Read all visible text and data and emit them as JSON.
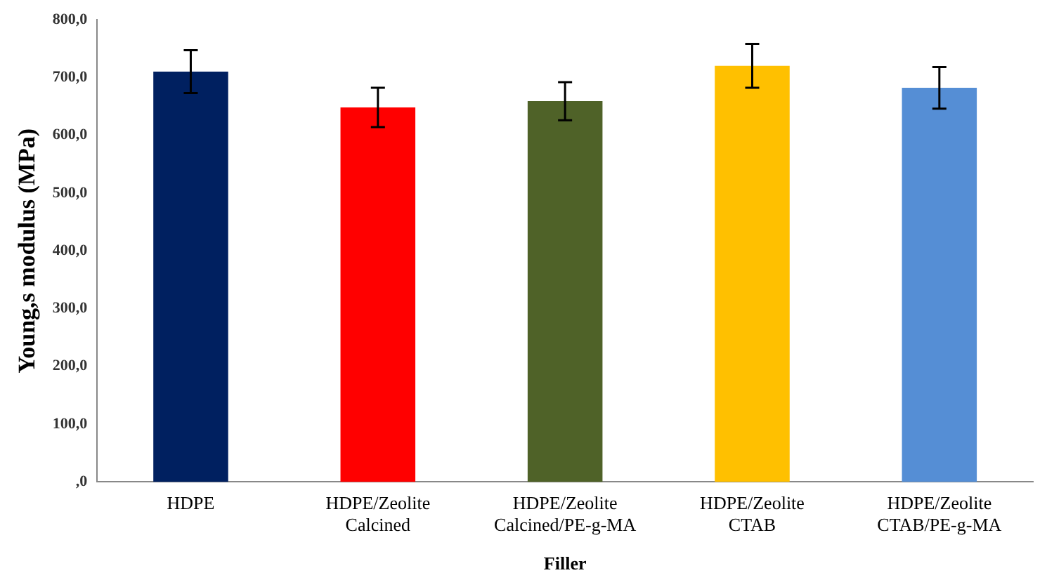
{
  "chart_data": {
    "type": "bar",
    "xlabel": "Filler",
    "ylabel": "Young,s modulus (MPa)",
    "categories": [
      "HDPE",
      "HDPE/Zeolite Calcined",
      "HDPE/Zeolite Calcined/PE-g-MA",
      "HDPE/Zeolite CTAB",
      "HDPE/Zeolite CTAB/PE-g-MA"
    ],
    "values": [
      710,
      648,
      659,
      720,
      682
    ],
    "errors": [
      37,
      34,
      33,
      38,
      36
    ],
    "colors": [
      "#002060",
      "#ff0000",
      "#4f6228",
      "#ffc000",
      "#558ed5"
    ],
    "ylim": [
      0,
      800
    ],
    "yticks": [
      {
        "value": 0,
        "label": ",0"
      },
      {
        "value": 100,
        "label": "100,0"
      },
      {
        "value": 200,
        "label": "200,0"
      },
      {
        "value": 300,
        "label": "300,0"
      },
      {
        "value": 400,
        "label": "400,0"
      },
      {
        "value": 500,
        "label": "500,0"
      },
      {
        "value": 600,
        "label": "600,0"
      },
      {
        "value": 700,
        "label": "700,0"
      },
      {
        "value": 800,
        "label": "800,0"
      }
    ],
    "grid": false,
    "legend": false
  }
}
